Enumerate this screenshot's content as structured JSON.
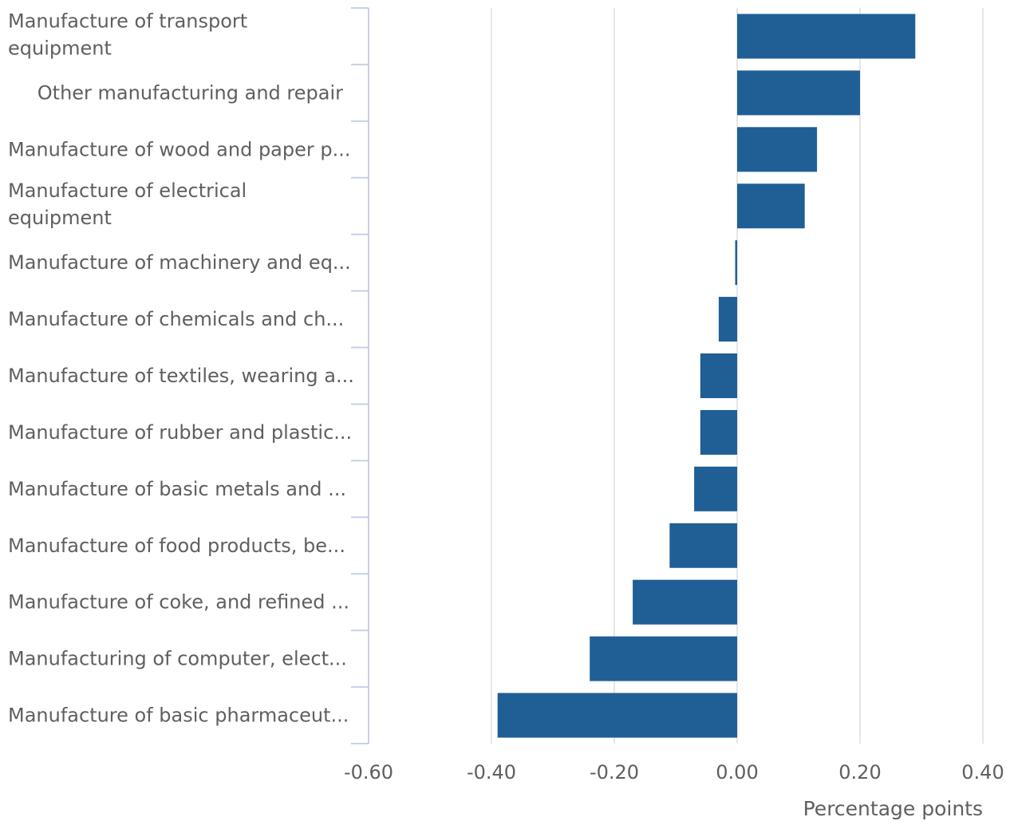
{
  "chart_data": {
    "type": "bar",
    "orientation": "horizontal",
    "title": "",
    "xlabel": "Percentage points",
    "ylabel": "",
    "xlim": [
      -0.6,
      0.4
    ],
    "xticks": [
      -0.6,
      -0.4,
      -0.2,
      0.0,
      0.2,
      0.4
    ],
    "xtick_labels": [
      "-0.60",
      "-0.40",
      "-0.20",
      "0.00",
      "0.20",
      "0.40"
    ],
    "grid": true,
    "legend": "none",
    "bar_color": "#1f5f96",
    "categories": [
      [
        "Manufacture of transport",
        "equipment"
      ],
      [
        "Other manufacturing and repair"
      ],
      [
        "Manufacture of wood and paper p..."
      ],
      [
        "Manufacture of electrical",
        "equipment"
      ],
      [
        "Manufacture of machinery and eq..."
      ],
      [
        "Manufacture of chemicals and ch..."
      ],
      [
        "Manufacture of textiles, wearing a..."
      ],
      [
        "Manufacture of rubber and plastic..."
      ],
      [
        "Manufacture of basic metals and ..."
      ],
      [
        "Manufacture of food products, be..."
      ],
      [
        "Manufacture of coke, and refined ..."
      ],
      [
        "Manufacturing of computer, elect..."
      ],
      [
        "Manufacture of basic pharmaceut..."
      ]
    ],
    "values": [
      0.29,
      0.2,
      0.13,
      0.11,
      -0.002,
      -0.03,
      -0.06,
      -0.06,
      -0.07,
      -0.11,
      -0.17,
      -0.24,
      -0.39
    ]
  }
}
